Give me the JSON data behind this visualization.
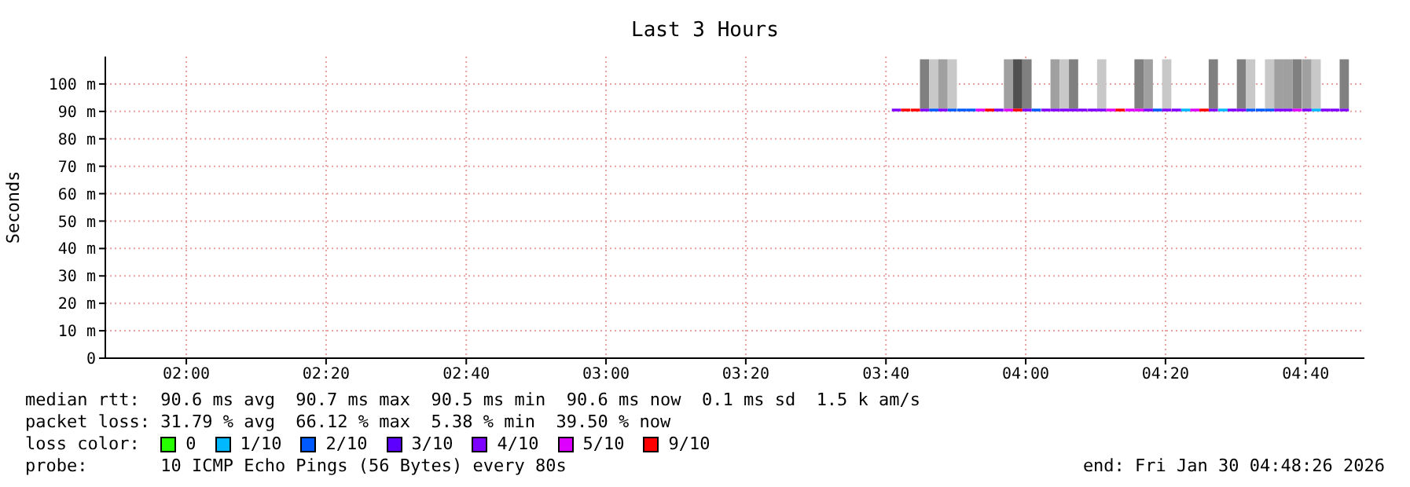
{
  "chart_data": {
    "type": "bar",
    "title": "Last 3 Hours",
    "ylabel": "Seconds",
    "legend_title": "loss color:",
    "legend": "bottom",
    "grid": true,
    "xlim": [
      1.807,
      4.807
    ],
    "xticks": [
      {
        "value": 2,
        "label": "02:00"
      },
      {
        "value": 2.333,
        "label": "02:20"
      },
      {
        "value": 2.667,
        "label": "02:40"
      },
      {
        "value": 3,
        "label": "03:00"
      },
      {
        "value": 3.333,
        "label": "03:20"
      },
      {
        "value": 3.667,
        "label": "03:40"
      },
      {
        "value": 4,
        "label": "04:00"
      },
      {
        "value": 4.333,
        "label": "04:20"
      },
      {
        "value": 4.667,
        "label": "04:40"
      }
    ],
    "ylim": [
      0,
      110
    ],
    "yticks": [
      {
        "value": 0,
        "label": "0"
      },
      {
        "value": 10,
        "label": "10 m"
      },
      {
        "value": 20,
        "label": "20 m"
      },
      {
        "value": 30,
        "label": "30 m"
      },
      {
        "value": 40,
        "label": "40 m"
      },
      {
        "value": 50,
        "label": "50 m"
      },
      {
        "value": 60,
        "label": "60 m"
      },
      {
        "value": 70,
        "label": "70 m"
      },
      {
        "value": 80,
        "label": "80 m"
      },
      {
        "value": 90,
        "label": "90 m"
      },
      {
        "value": 100,
        "label": "100 m"
      }
    ],
    "x": [
      3.692,
      3.714,
      3.737,
      3.759,
      3.781,
      3.803,
      3.825,
      3.848,
      3.87,
      3.892,
      3.914,
      3.936,
      3.959,
      3.981,
      4.003,
      4.025,
      4.048,
      4.07,
      4.092,
      4.114,
      4.136,
      4.159,
      4.181,
      4.203,
      4.225,
      4.248,
      4.27,
      4.292,
      4.314,
      4.336,
      4.359,
      4.381,
      4.403,
      4.425,
      4.447,
      4.47,
      4.492,
      4.514,
      4.536,
      4.559,
      4.581,
      4.603,
      4.625,
      4.647,
      4.67,
      4.692,
      4.714,
      4.736,
      4.759
    ],
    "series": [
      {
        "colors": [
          null,
          null,
          null,
          "#808080",
          "#c8c8c8",
          "#a0a0a0",
          "#c8c8c8",
          null,
          null,
          null,
          null,
          null,
          "#a0a0a0",
          "#505050",
          "#808080",
          null,
          null,
          "#a0a0a0",
          "#c8c8c8",
          "#808080",
          null,
          null,
          "#c8c8c8",
          null,
          null,
          null,
          "#808080",
          "#a0a0a0",
          null,
          "#c8c8c8",
          null,
          null,
          null,
          null,
          "#808080",
          null,
          null,
          "#808080",
          "#c8c8c8",
          null,
          "#c8c8c8",
          "#a0a0a0",
          "#a0a0a0",
          "#808080",
          "#a0a0a0",
          "#c8c8c8",
          null,
          null,
          "#808080"
        ],
        "base": [
          null,
          null,
          null,
          91,
          91,
          91,
          91,
          null,
          null,
          null,
          null,
          null,
          91,
          91,
          91,
          null,
          null,
          91,
          91,
          91,
          null,
          null,
          91,
          null,
          null,
          null,
          91,
          91,
          null,
          91,
          null,
          null,
          null,
          null,
          91,
          null,
          null,
          91,
          91,
          null,
          91,
          91,
          91,
          91,
          91,
          91,
          null,
          null,
          91
        ],
        "values": [
          null,
          null,
          null,
          18,
          18,
          18,
          18,
          null,
          null,
          null,
          null,
          null,
          18,
          18,
          18,
          null,
          null,
          18,
          18,
          18,
          null,
          null,
          18,
          null,
          null,
          null,
          18,
          18,
          null,
          18,
          null,
          null,
          null,
          null,
          18,
          null,
          null,
          18,
          18,
          null,
          18,
          18,
          18,
          18,
          18,
          18,
          null,
          null,
          18
        ]
      },
      {
        "name": "0",
        "color": "#26ff00",
        "base": [
          null,
          null,
          null,
          null,
          null,
          null,
          null,
          null,
          null,
          null,
          null,
          null,
          null,
          null,
          null,
          null,
          null,
          null,
          null,
          null,
          null,
          null,
          null,
          null,
          null,
          null,
          null,
          null,
          null,
          null,
          null,
          null,
          null,
          null,
          null,
          null,
          null,
          null,
          null,
          null,
          null,
          null,
          null,
          null,
          null,
          null,
          null,
          null,
          null
        ],
        "values": [
          null,
          null,
          null,
          null,
          null,
          null,
          null,
          null,
          null,
          null,
          null,
          null,
          null,
          null,
          null,
          null,
          null,
          null,
          null,
          null,
          null,
          null,
          null,
          null,
          null,
          null,
          null,
          null,
          null,
          null,
          null,
          null,
          null,
          null,
          null,
          null,
          null,
          null,
          null,
          null,
          null,
          null,
          null,
          null,
          null,
          null,
          null,
          null,
          null
        ]
      },
      {
        "name": "1/10",
        "color": "#00b8ff",
        "base": [
          null,
          null,
          null,
          null,
          null,
          null,
          null,
          null,
          null,
          null,
          null,
          null,
          null,
          null,
          null,
          null,
          null,
          null,
          null,
          null,
          null,
          null,
          null,
          null,
          null,
          null,
          null,
          null,
          null,
          null,
          null,
          90,
          null,
          null,
          null,
          90,
          null,
          null,
          null,
          null,
          null,
          null,
          null,
          null,
          null,
          90,
          null,
          null,
          null
        ],
        "values": [
          null,
          null,
          null,
          null,
          null,
          null,
          null,
          null,
          null,
          null,
          null,
          null,
          null,
          null,
          null,
          null,
          null,
          null,
          null,
          null,
          null,
          null,
          null,
          null,
          null,
          null,
          null,
          null,
          null,
          null,
          null,
          1,
          null,
          null,
          null,
          1,
          null,
          null,
          null,
          null,
          null,
          null,
          null,
          null,
          null,
          1,
          null,
          null,
          null
        ]
      },
      {
        "name": "2/10",
        "color": "#0059ff",
        "base": [
          null,
          null,
          null,
          null,
          90,
          null,
          90,
          90,
          90,
          null,
          null,
          null,
          null,
          null,
          null,
          90,
          null,
          null,
          null,
          null,
          null,
          null,
          null,
          null,
          null,
          null,
          null,
          null,
          90,
          null,
          null,
          null,
          null,
          null,
          null,
          null,
          null,
          null,
          90,
          90,
          90,
          null,
          null,
          null,
          null,
          null,
          null,
          null,
          null
        ],
        "values": [
          null,
          null,
          null,
          null,
          1,
          null,
          1,
          1,
          1,
          null,
          null,
          null,
          null,
          null,
          null,
          1,
          null,
          null,
          null,
          null,
          null,
          null,
          null,
          null,
          null,
          null,
          null,
          null,
          1,
          null,
          null,
          null,
          null,
          null,
          null,
          null,
          null,
          null,
          1,
          1,
          1,
          null,
          null,
          null,
          null,
          null,
          null,
          null,
          null
        ]
      },
      {
        "name": "3/10",
        "color": "#5e00ff",
        "base": [
          null,
          null,
          null,
          null,
          null,
          null,
          null,
          null,
          null,
          null,
          null,
          null,
          null,
          null,
          null,
          null,
          null,
          null,
          null,
          null,
          null,
          null,
          null,
          null,
          null,
          null,
          null,
          null,
          null,
          null,
          null,
          null,
          null,
          null,
          null,
          null,
          null,
          null,
          null,
          null,
          null,
          null,
          null,
          null,
          null,
          null,
          null,
          null,
          null
        ],
        "values": [
          null,
          null,
          null,
          null,
          null,
          null,
          null,
          null,
          null,
          null,
          null,
          null,
          null,
          null,
          null,
          null,
          null,
          null,
          null,
          null,
          null,
          null,
          null,
          null,
          null,
          null,
          null,
          null,
          null,
          null,
          null,
          null,
          null,
          null,
          null,
          null,
          null,
          null,
          null,
          null,
          null,
          null,
          null,
          null,
          null,
          null,
          null,
          null,
          null
        ]
      },
      {
        "name": "4/10",
        "color": "#7e00ff",
        "base": [
          90,
          null,
          null,
          90,
          null,
          90,
          null,
          null,
          null,
          null,
          null,
          90,
          null,
          null,
          90,
          null,
          90,
          90,
          90,
          90,
          90,
          90,
          90,
          null,
          null,
          null,
          null,
          90,
          null,
          90,
          90,
          null,
          null,
          null,
          90,
          null,
          90,
          90,
          null,
          null,
          null,
          90,
          90,
          null,
          90,
          null,
          90,
          90,
          90
        ],
        "values": [
          1,
          null,
          null,
          1,
          null,
          1,
          null,
          null,
          null,
          null,
          null,
          1,
          null,
          null,
          1,
          null,
          1,
          1,
          1,
          1,
          1,
          1,
          1,
          null,
          null,
          null,
          null,
          1,
          null,
          1,
          1,
          null,
          null,
          null,
          1,
          null,
          1,
          1,
          null,
          null,
          null,
          1,
          1,
          null,
          1,
          null,
          1,
          1,
          1
        ]
      },
      {
        "name": "5/10",
        "color": "#dd00ff",
        "base": [
          null,
          null,
          null,
          null,
          null,
          null,
          null,
          null,
          null,
          90,
          null,
          null,
          90,
          null,
          null,
          null,
          null,
          null,
          null,
          null,
          null,
          null,
          null,
          90,
          null,
          90,
          90,
          null,
          null,
          null,
          null,
          null,
          90,
          null,
          null,
          null,
          null,
          null,
          null,
          null,
          null,
          null,
          null,
          90,
          null,
          null,
          null,
          null,
          null
        ],
        "values": [
          null,
          null,
          null,
          null,
          null,
          null,
          null,
          null,
          null,
          1,
          null,
          null,
          1,
          null,
          null,
          null,
          null,
          null,
          null,
          null,
          null,
          null,
          null,
          1,
          null,
          1,
          1,
          null,
          null,
          null,
          null,
          null,
          1,
          null,
          null,
          null,
          null,
          null,
          null,
          null,
          null,
          null,
          null,
          1,
          null,
          null,
          null,
          null,
          null
        ]
      },
      {
        "name": "9/10",
        "color": "#ff0000",
        "base": [
          null,
          90,
          90,
          null,
          null,
          null,
          null,
          null,
          null,
          null,
          90,
          null,
          null,
          90,
          null,
          null,
          null,
          null,
          null,
          null,
          null,
          null,
          null,
          null,
          90,
          null,
          null,
          null,
          null,
          null,
          null,
          null,
          null,
          90,
          null,
          null,
          null,
          null,
          null,
          null,
          null,
          null,
          null,
          null,
          null,
          null,
          null,
          null,
          null
        ],
        "values": [
          null,
          1,
          1,
          null,
          null,
          null,
          null,
          null,
          null,
          null,
          1,
          null,
          null,
          1,
          null,
          null,
          null,
          null,
          null,
          null,
          null,
          null,
          null,
          null,
          1,
          null,
          null,
          null,
          null,
          null,
          null,
          null,
          null,
          1,
          null,
          null,
          null,
          null,
          null,
          null,
          null,
          null,
          null,
          null,
          null,
          null,
          null,
          null,
          null
        ]
      }
    ],
    "annotations": [
      "median rtt:  90.6 ms avg  90.7 ms max  90.5 ms min  90.6 ms now  0.1 ms sd  1.5 k am/s",
      "packet loss: 31.79 % avg  66.12 % max  5.38 % min  39.50 % now",
      "probe:       10 ICMP Echo Pings (56 Bytes) every 80s",
      "end: Fri Jan 30 04:48:26 2026"
    ]
  }
}
